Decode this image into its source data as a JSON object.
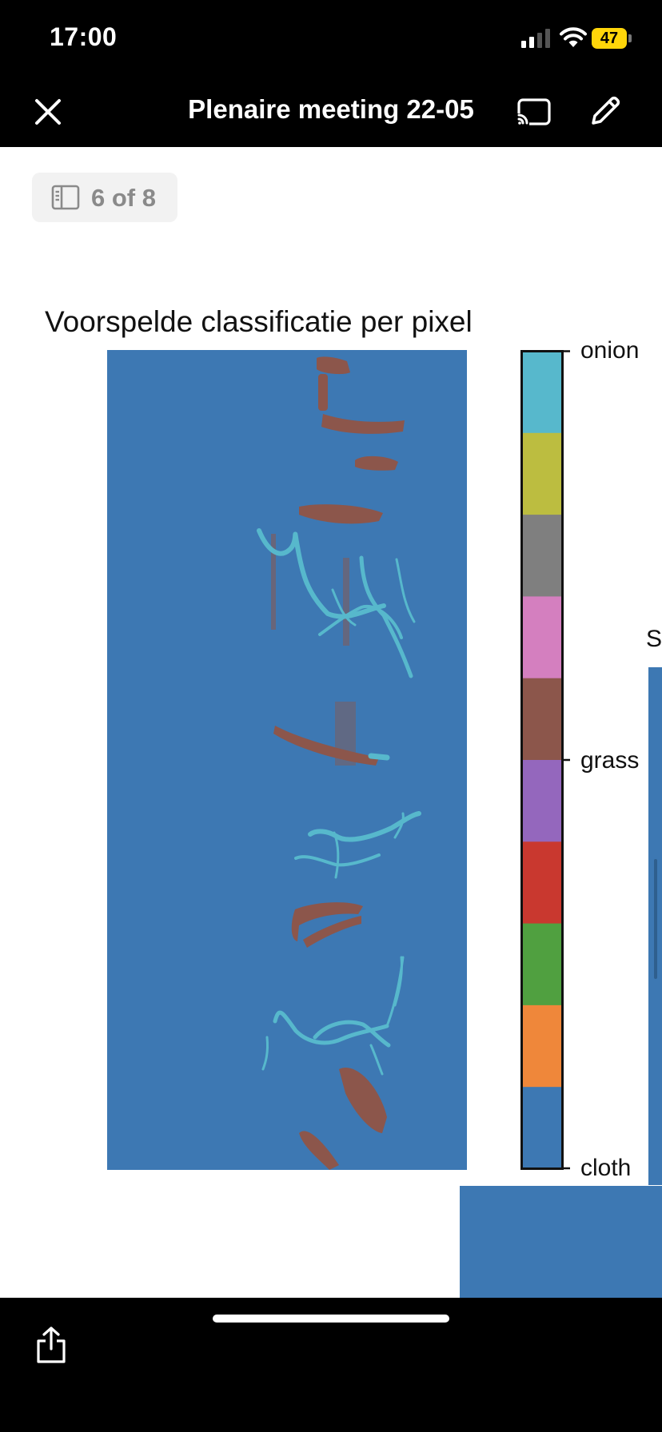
{
  "status_bar": {
    "time": "17:00",
    "battery_level": "47",
    "signal_bars_filled": 2,
    "signal_bars_total": 4
  },
  "nav": {
    "title": "Plenaire meeting 22-05",
    "close_icon": "close-icon",
    "cast_icon": "cast-icon",
    "edit_icon": "pencil-icon"
  },
  "page_indicator": {
    "text": "6 of 8",
    "icon": "sidebar-icon"
  },
  "figure": {
    "title": "Voorspelde classificatie per pixel"
  },
  "chart_data": {
    "type": "heatmap",
    "title": "Voorspelde classificatie per pixel",
    "background_class": "cloth",
    "visible_classes": [
      "cloth",
      "grass",
      "onion"
    ],
    "colorbar": {
      "tick_labels": [
        "onion",
        "grass",
        "cloth"
      ],
      "colors_top_to_bottom": [
        "#57b8cc",
        "#bcbd40",
        "#7f7f7f",
        "#d47fbf",
        "#8c564b",
        "#9467bd",
        "#c9382f",
        "#50a040",
        "#ef873a",
        "#3d78b3"
      ]
    }
  },
  "background_page_peek": {
    "char": "S"
  },
  "toolbar": {
    "share_icon": "share-icon"
  },
  "colors": {
    "cloth": "#3d78b3",
    "grass": "#8c564b",
    "onion": "#57b8cc",
    "bars_background": "#000000",
    "battery": "#ffd60a"
  }
}
